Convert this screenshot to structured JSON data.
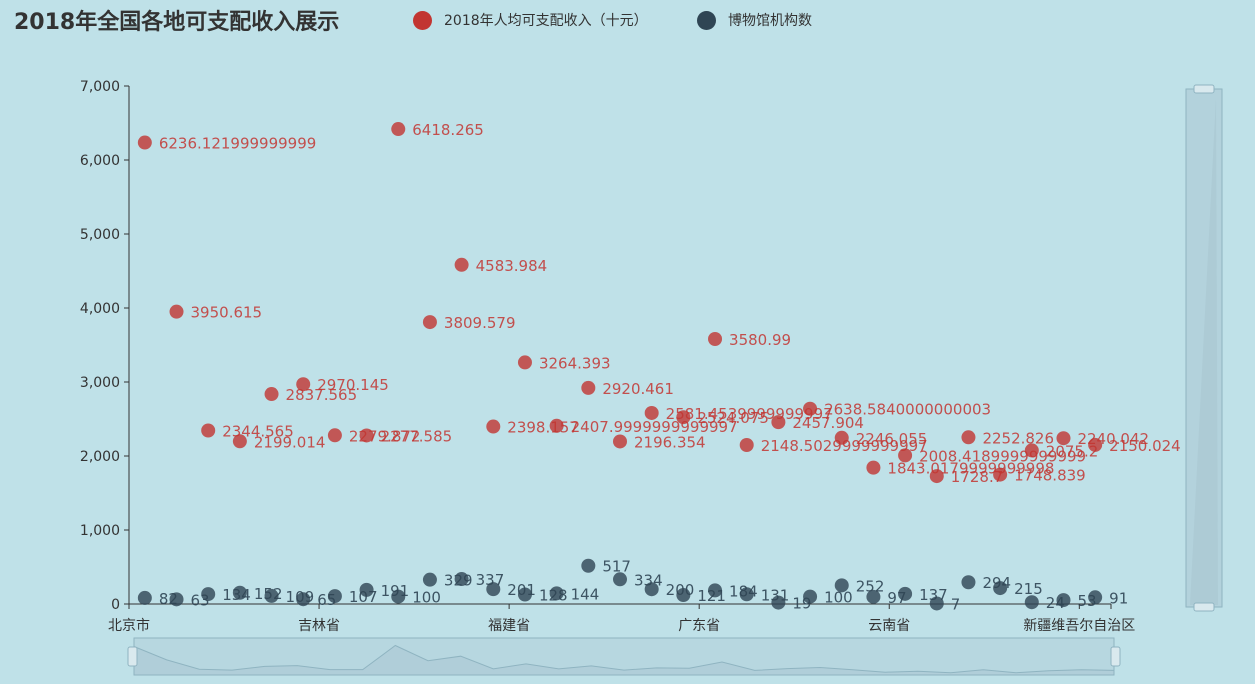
{
  "colors": {
    "background": "#bfe1e8",
    "income": "#c23531",
    "museums": "#2f4554",
    "axis": "#333333",
    "slider": "#a9c6d1",
    "slider_border": "#8fb4c1"
  },
  "chart_data": {
    "type": "scatter",
    "title": "2018年全国各地可支配收入展示",
    "legend_position": "top",
    "x_tick_labels": [
      "北京市",
      "吉林省",
      "福建省",
      "广东省",
      "云南省",
      "新疆维吾尔自治区"
    ],
    "x_tick_indices": [
      0,
      6,
      12,
      18,
      24,
      30
    ],
    "y_ticks": [
      "0",
      "1,000",
      "2,000",
      "3,000",
      "4,000",
      "5,000",
      "6,000",
      "7,000"
    ],
    "y_tick_values": [
      0,
      1000,
      2000,
      3000,
      4000,
      5000,
      6000,
      7000
    ],
    "ylim": [
      0,
      7000
    ],
    "grid": false,
    "series": [
      {
        "name": "2018年人均可支配收入（十元）",
        "color": "#c23531",
        "values": [
          6236.121999999999,
          3950.615,
          2344.565,
          2199.014,
          2837.565,
          2970.145,
          2279.872,
          2277.585,
          6418.265,
          3809.579,
          4583.984,
          2398.157,
          3264.393,
          2407.9999999999995,
          2920.461,
          2196.354,
          2581.4539999999997,
          2524.075,
          3580.99,
          2148.5029999999997,
          2457.904,
          2638.5840000000003,
          2246.055,
          1843.0179999999998,
          2008.4189999999999,
          1728.7,
          2252.826,
          1748.839,
          2075.2,
          2240.042,
          2150.024
        ],
        "labels": [
          "6236.121999999999",
          "3950.615",
          "2344.565",
          "2199.014",
          "2837.565",
          "2970.145",
          "2279.872",
          "2277.585",
          "6418.265",
          "3809.579",
          "4583.984",
          "2398.157",
          "3264.393",
          "2407.9999999999997",
          "2920.461",
          "2196.354",
          "2581.4539999999997",
          "2524.075",
          "3580.99",
          "2148.5029999999997",
          "2457.904",
          "2638.5840000000003",
          "2246.055",
          "1843.0179999999998",
          "2008.4189999999999",
          "1728.7",
          "2252.826",
          "1748.839",
          "2075.2",
          "2240.042",
          "2150.024"
        ]
      },
      {
        "name": "博物馆机构数",
        "color": "#2f4554",
        "values": [
          82,
          63,
          134,
          152,
          109,
          65,
          107,
          191,
          100,
          329,
          337,
          201,
          128,
          144,
          517,
          334,
          200,
          121,
          184,
          131,
          19,
          100,
          252,
          97,
          137,
          7,
          294,
          215,
          24,
          53,
          91
        ],
        "labels": [
          "82",
          "63",
          "134",
          "152",
          "109",
          "65",
          "107",
          "191",
          "100",
          "329",
          "337",
          "201",
          "128",
          "144",
          "517",
          "334",
          "200",
          "121",
          "184",
          "131",
          "19",
          "100",
          "252",
          "97",
          "137",
          "7",
          "294",
          "215",
          "24",
          "53",
          "91"
        ]
      }
    ]
  }
}
